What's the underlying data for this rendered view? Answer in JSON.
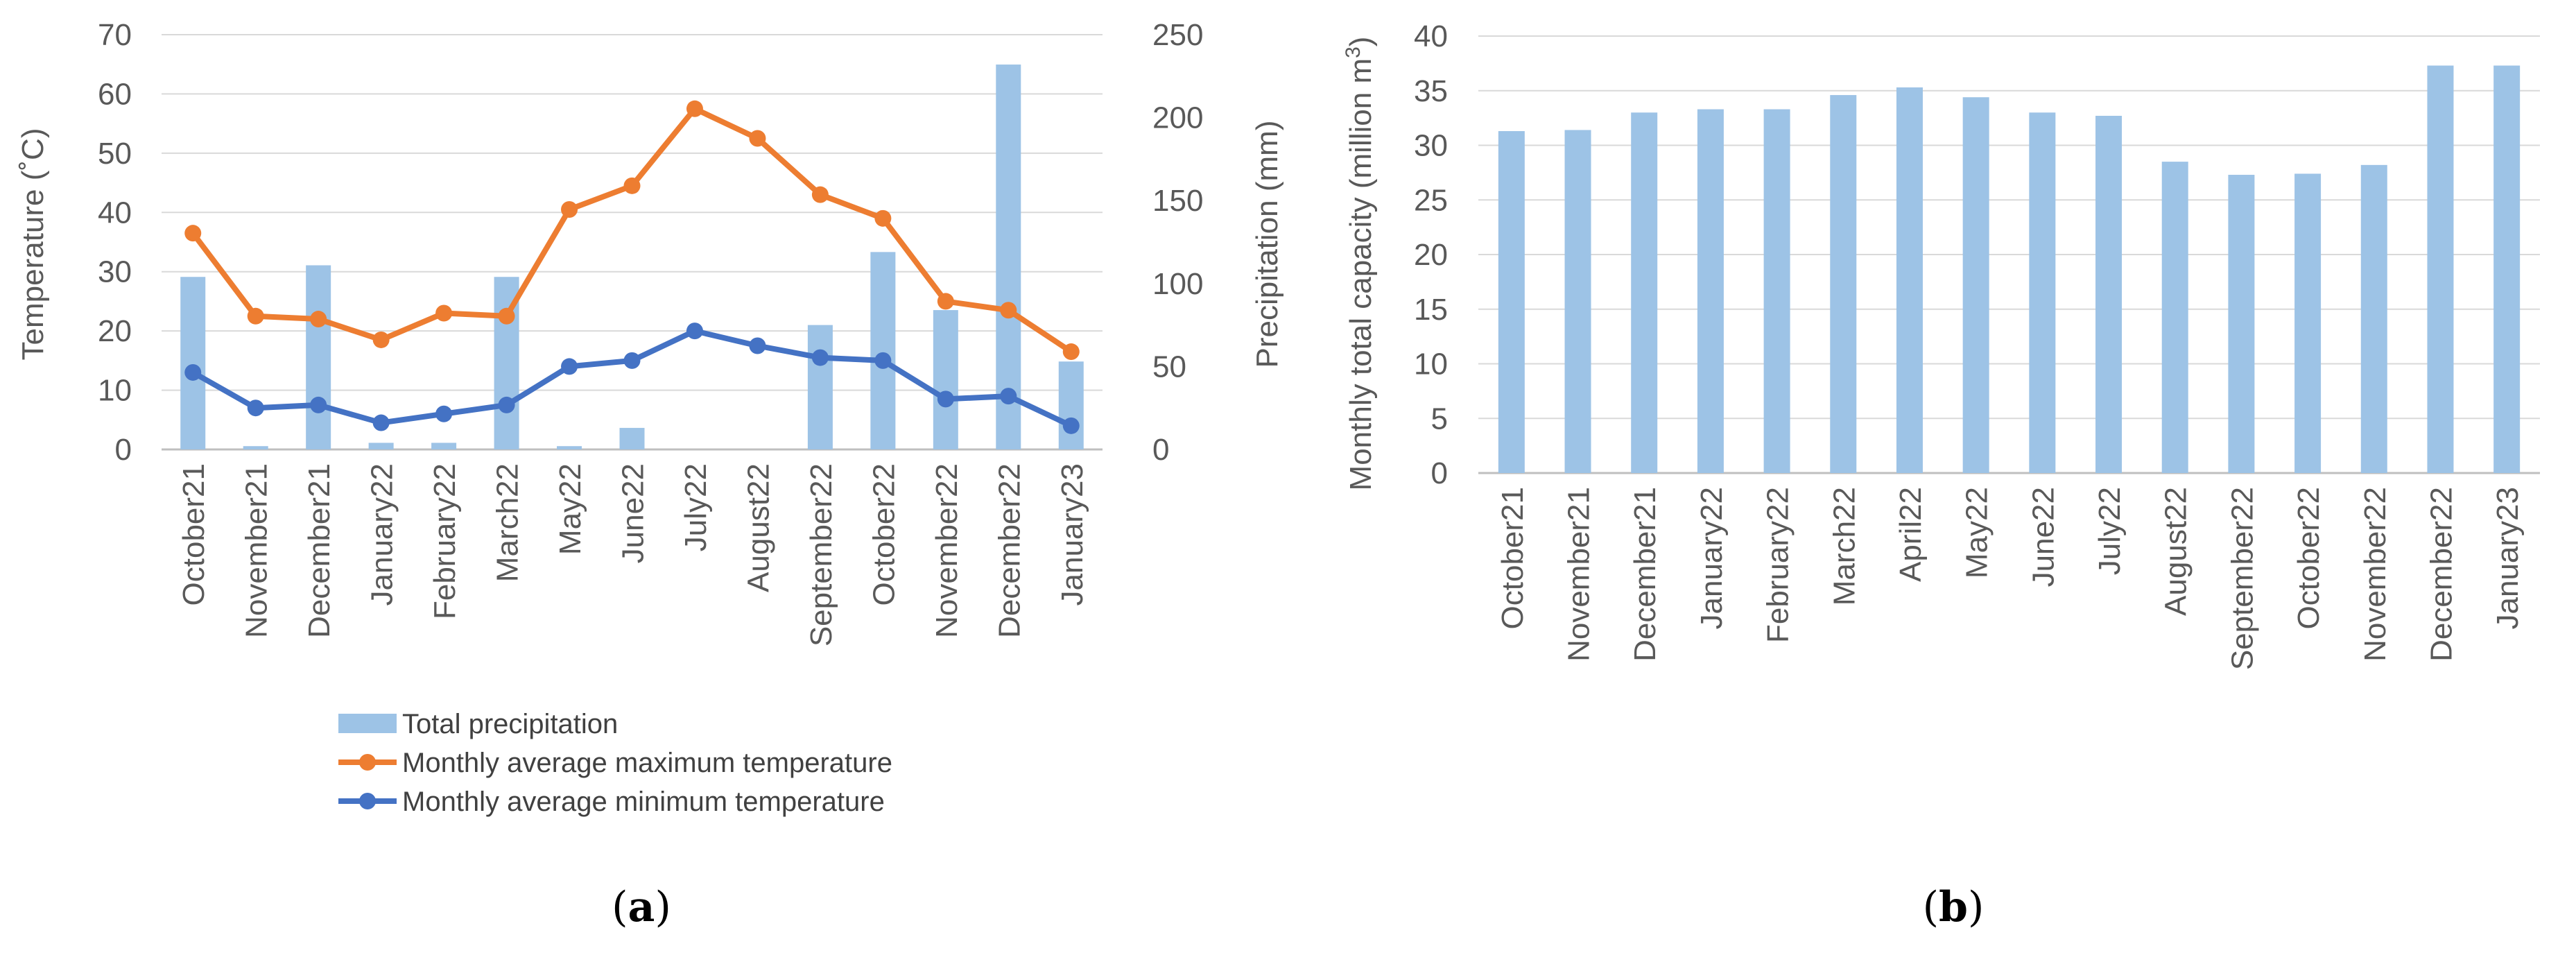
{
  "colors": {
    "precipitation": "#9DC3E6",
    "max_temp": "#ED7D31",
    "min_temp": "#4472C4",
    "grid": "#D9D9D9",
    "text": "#595959"
  },
  "panel_labels": {
    "a": {
      "open": "(",
      "letter": "a",
      "close": ")"
    },
    "b": {
      "open": "(",
      "letter": "b",
      "close": ")"
    }
  },
  "chart_data": [
    {
      "id": "a",
      "type": "bar+line",
      "categories": [
        "October21",
        "November21",
        "December21",
        "January22",
        "February22",
        "March22",
        "May22",
        "June22",
        "July22",
        "August22",
        "September22",
        "October22",
        "November22",
        "December22",
        "January23"
      ],
      "ylabel_left": "Temperature (˚C)",
      "ylabel_right": "Precipitation (mm)",
      "ylim_left": [
        0,
        70
      ],
      "yticks_left": [
        0,
        10,
        20,
        30,
        40,
        50,
        60,
        70
      ],
      "ylim_right": [
        0,
        250
      ],
      "yticks_right": [
        0,
        50,
        100,
        150,
        200,
        250
      ],
      "grid": true,
      "legend_position": "bottom",
      "series": [
        {
          "name": "Total precipitation",
          "type": "bar",
          "axis": "right",
          "color_key": "precipitation",
          "values": [
            104,
            2,
            111,
            4,
            4,
            104,
            2,
            13,
            0,
            0,
            75,
            119,
            84,
            232,
            53
          ]
        },
        {
          "name": "Monthly average maximum temperature",
          "type": "line",
          "axis": "left",
          "color_key": "max_temp",
          "values": [
            36.5,
            22.5,
            22,
            18.5,
            23,
            22.5,
            40.5,
            44.5,
            57.5,
            52.5,
            43,
            39,
            25,
            23.5,
            16.5
          ]
        },
        {
          "name": "Monthly average minimum temperature",
          "type": "line",
          "axis": "left",
          "color_key": "min_temp",
          "values": [
            13,
            7,
            7.5,
            4.5,
            6,
            7.5,
            14,
            15,
            20,
            17.5,
            15.5,
            15,
            8.5,
            9,
            4
          ]
        }
      ]
    },
    {
      "id": "b",
      "type": "bar",
      "categories": [
        "October21",
        "November21",
        "December21",
        "January22",
        "February22",
        "March22",
        "April22",
        "May22",
        "June22",
        "July22",
        "August22",
        "September22",
        "October22",
        "November22",
        "December22",
        "January23"
      ],
      "ylabel": "Monthly total capacity (million m",
      "ylabel_sup": "3",
      "ylabel_close": ")",
      "ylim": [
        0,
        40
      ],
      "yticks": [
        0,
        5,
        10,
        15,
        20,
        25,
        30,
        35,
        40
      ],
      "grid": true,
      "series": [
        {
          "name": "Monthly total capacity",
          "color_key": "precipitation",
          "values": [
            31.3,
            31.4,
            33.0,
            33.3,
            33.3,
            34.6,
            35.3,
            34.4,
            33.0,
            32.7,
            28.5,
            27.3,
            27.4,
            28.2,
            37.3,
            37.3
          ]
        }
      ]
    }
  ]
}
